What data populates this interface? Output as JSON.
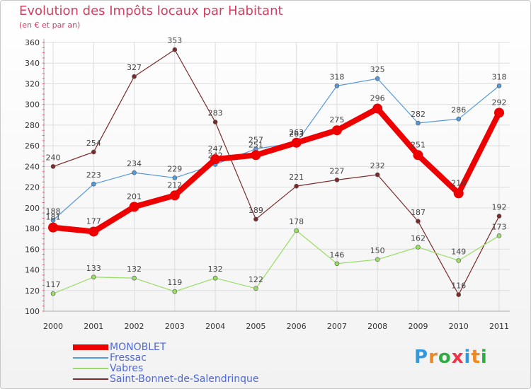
{
  "chart_data": {
    "type": "line",
    "title": "Evolution des Impôts locaux par Habitant",
    "subtitle": "(en € et par an)",
    "xlabel": "",
    "ylabel": "",
    "categories": [
      "2000",
      "2001",
      "2002",
      "2003",
      "2004",
      "2005",
      "2006",
      "2007",
      "2008",
      "2009",
      "2010",
      "2011"
    ],
    "ylim": [
      100,
      360
    ],
    "yticks": [
      100,
      120,
      140,
      160,
      180,
      200,
      220,
      240,
      260,
      280,
      300,
      320,
      340,
      360
    ],
    "grid": true,
    "legend_position": "bottom-left",
    "series": [
      {
        "name": "Saint-Bonnet-de-Salendrinque",
        "color": "#7a2a2a",
        "values": [
          240,
          254,
          327,
          353,
          283,
          189,
          221,
          227,
          232,
          187,
          116,
          192
        ]
      },
      {
        "name": "Vabres",
        "color": "#99dd66",
        "values": [
          117,
          133,
          132,
          119,
          132,
          122,
          178,
          146,
          150,
          162,
          149,
          173
        ]
      },
      {
        "name": "Fressac",
        "color": "#5599dd",
        "values": [
          188,
          223,
          234,
          229,
          242,
          257,
          263,
          318,
          325,
          282,
          286,
          318
        ]
      },
      {
        "name": "MONOBLET",
        "color": "#ee0000",
        "values": [
          181,
          177,
          201,
          212,
          247,
          251,
          263,
          275,
          296,
          251,
          214,
          292
        ]
      }
    ]
  },
  "legend_items": [
    {
      "label": "MONOBLET",
      "color": "#ee0000",
      "thickness": 8
    },
    {
      "label": "Fressac",
      "color": "#5599dd",
      "thickness": 2
    },
    {
      "label": "Vabres",
      "color": "#99dd66",
      "thickness": 2
    },
    {
      "label": "Saint-Bonnet-de-Salendrinque",
      "color": "#7a2a2a",
      "thickness": 2
    }
  ],
  "logo": {
    "letters": [
      "P",
      "r",
      "o",
      "x",
      "i",
      "t",
      "i"
    ],
    "colors": [
      "#3399dd",
      "#ee8822",
      "#33aa44",
      "#ee3344",
      "#3399dd",
      "#ee8822",
      "#33aa44"
    ]
  }
}
